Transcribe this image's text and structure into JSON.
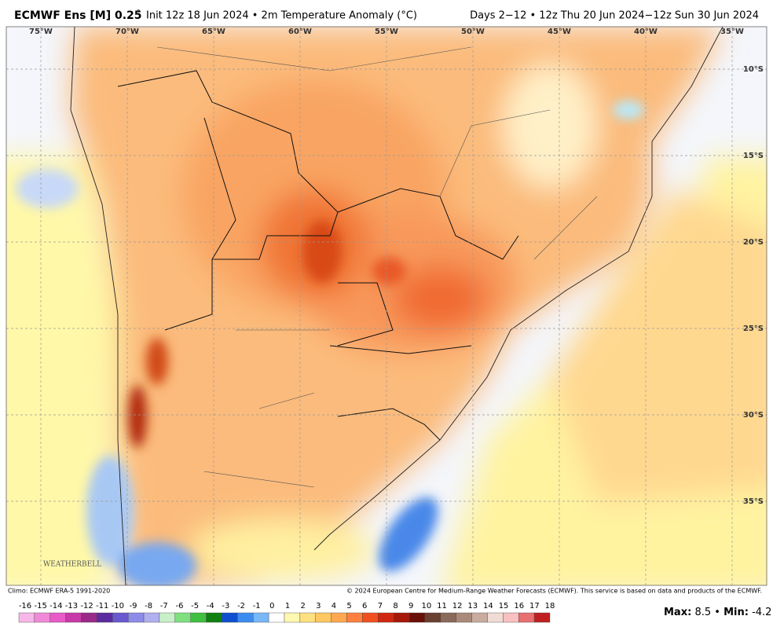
{
  "header": {
    "title": "ECMWF Ens [M] 0.25",
    "degree": "°",
    "subtitle": "Init 12z 18 Jun 2024 • 2m Temperature Anomaly (°C)",
    "range": "Days 2−12 • 12z Thu 20 Jun 2024−12z Sun 30 Jun 2024"
  },
  "map": {
    "lon_labels": [
      "75°W",
      "70°W",
      "65°W",
      "60°W",
      "55°W",
      "50°W",
      "45°W",
      "40°W",
      "35°W"
    ],
    "lat_labels": [
      "10°S",
      "15°S",
      "20°S",
      "25°S",
      "30°S",
      "35°S"
    ],
    "logo": "WEATHERBELL"
  },
  "footer": {
    "climo": "Climo: ECMWF ERA-5 1991-2020",
    "copyright": "© 2024 European Centre for Medium-Range Weather Forecasts (ECMWF). This service is based on data and products of the ECMWF.",
    "colorbar": {
      "labels": [
        -16,
        -15,
        -14,
        -13,
        -12,
        -11,
        -10,
        -9,
        -8,
        -7,
        -6,
        -5,
        -4,
        -3,
        -2,
        -1,
        0,
        1,
        2,
        3,
        4,
        5,
        6,
        7,
        8,
        9,
        10,
        11,
        12,
        13,
        14,
        15,
        16,
        17,
        18
      ],
      "colors": [
        "#f7b6e8",
        "#f08ad8",
        "#e85cc8",
        "#c83aa8",
        "#9a2a88",
        "#5a2ca0",
        "#6a5ad0",
        "#8c8ce8",
        "#b0b0f0",
        "#c8f0c8",
        "#80e080",
        "#40c040",
        "#108010",
        "#1050d0",
        "#3c8cf0",
        "#78b8f8",
        "#ffffff",
        "#fff8b0",
        "#ffe080",
        "#ffc860",
        "#ffa850",
        "#ff8040",
        "#f05020",
        "#d02810",
        "#a81808",
        "#6a1008",
        "#6a4030",
        "#8a6a5a",
        "#aa8a7a",
        "#c8aca0",
        "#f0dcd4",
        "#f8c0c0",
        "#e87070",
        "#c02020"
      ]
    },
    "max_label": "Max:",
    "max": 8.5,
    "sep": "•",
    "min_label": "Min:",
    "min": -4.2
  }
}
